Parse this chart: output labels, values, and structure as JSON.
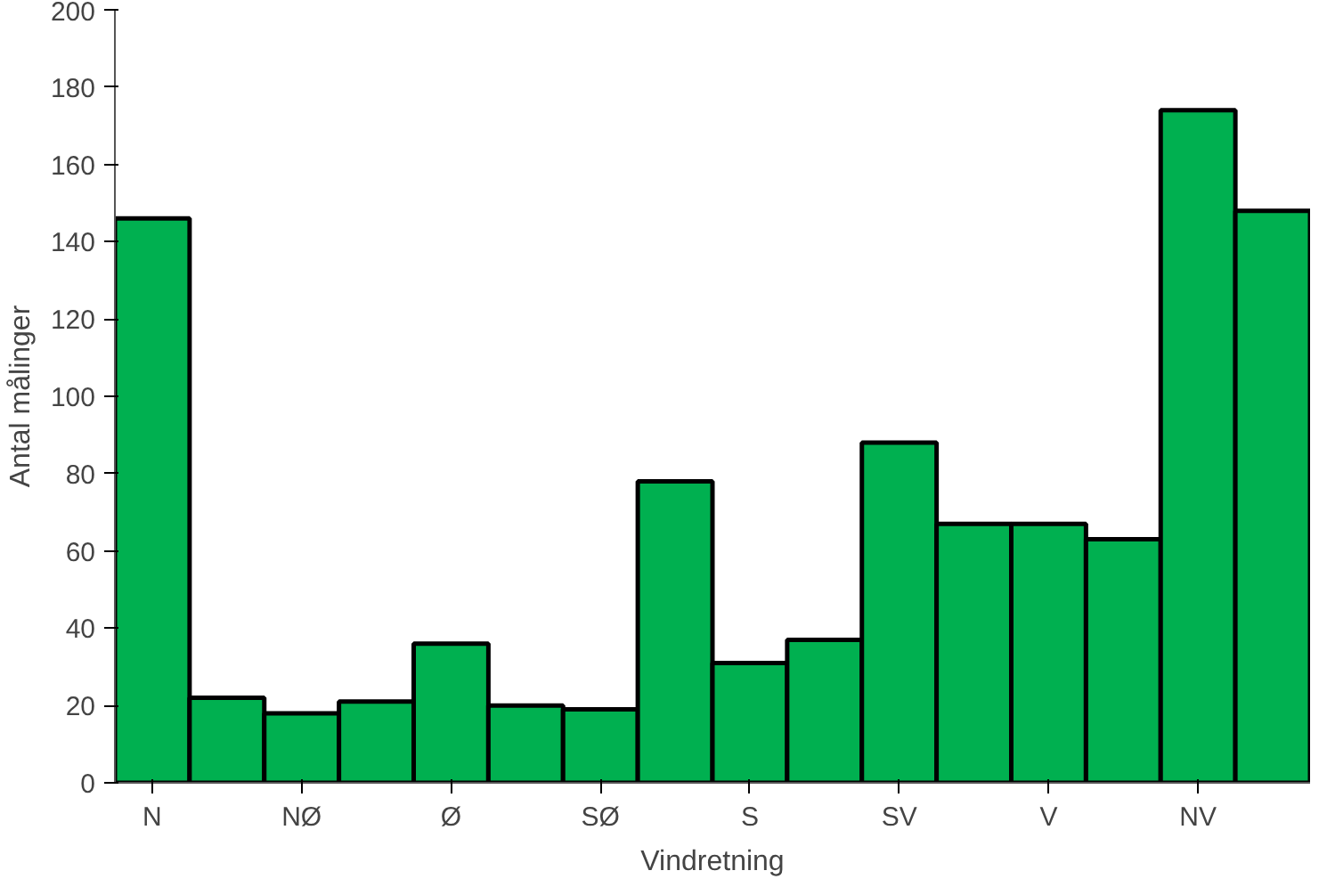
{
  "chart_data": {
    "type": "bar",
    "xlabel": "Vindretning",
    "ylabel": "Antal målinger",
    "categories": [
      "N",
      null,
      "NØ",
      null,
      "Ø",
      null,
      "SØ",
      null,
      "S",
      null,
      "SV",
      null,
      "V",
      null,
      "NV",
      null
    ],
    "values": [
      146,
      22,
      18,
      21,
      36,
      20,
      19,
      78,
      31,
      37,
      88,
      67,
      67,
      63,
      174,
      148
    ],
    "color": "#00b050",
    "ylim": [
      0,
      200
    ],
    "yticks": [
      0,
      20,
      40,
      60,
      80,
      100,
      120,
      140,
      160,
      180,
      200
    ],
    "grid": false
  }
}
